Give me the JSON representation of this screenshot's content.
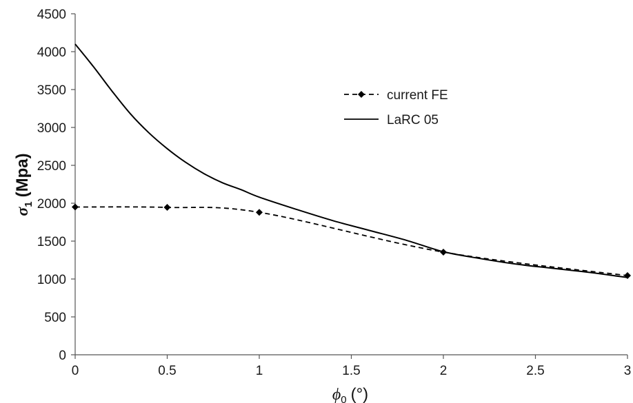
{
  "chart_data": {
    "type": "line",
    "xlabel": {
      "symbol": "ϕ",
      "subscript": "0",
      "unit": "(°)"
    },
    "ylabel": {
      "symbol": "σ",
      "subscript": "1",
      "unit": "(Mpa)"
    },
    "xlim": [
      0,
      3
    ],
    "ylim": [
      0,
      4500
    ],
    "x_ticks": [
      0,
      0.5,
      1,
      1.5,
      2,
      2.5,
      3
    ],
    "x_tick_labels": [
      "0",
      "0.5",
      "1",
      "1.5",
      "2",
      "2.5",
      "3"
    ],
    "y_ticks": [
      0,
      500,
      1000,
      1500,
      2000,
      2500,
      3000,
      3500,
      4000,
      4500
    ],
    "y_tick_labels": [
      "0",
      "500",
      "1000",
      "1500",
      "2000",
      "2500",
      "3000",
      "3500",
      "4000",
      "4500"
    ],
    "grid": false,
    "legend_position": "upper-right",
    "series": [
      {
        "name": "current FE",
        "style": "dashed-diamond",
        "color": "#000000",
        "x": [
          0,
          0.5,
          1,
          2,
          3
        ],
        "y": [
          1950,
          1945,
          1880,
          1355,
          1045
        ]
      },
      {
        "name": "LaRC 05",
        "style": "solid",
        "color": "#000000",
        "x": [
          0,
          0.1,
          0.2,
          0.3,
          0.4,
          0.5,
          0.6,
          0.7,
          0.8,
          0.9,
          1.0,
          1.2,
          1.4,
          1.6,
          1.8,
          2.0,
          2.2,
          2.4,
          2.6,
          2.8,
          3.0
        ],
        "y": [
          4100,
          3800,
          3480,
          3180,
          2930,
          2720,
          2540,
          2390,
          2270,
          2180,
          2080,
          1920,
          1770,
          1640,
          1510,
          1360,
          1270,
          1195,
          1140,
          1085,
          1020
        ]
      }
    ]
  }
}
